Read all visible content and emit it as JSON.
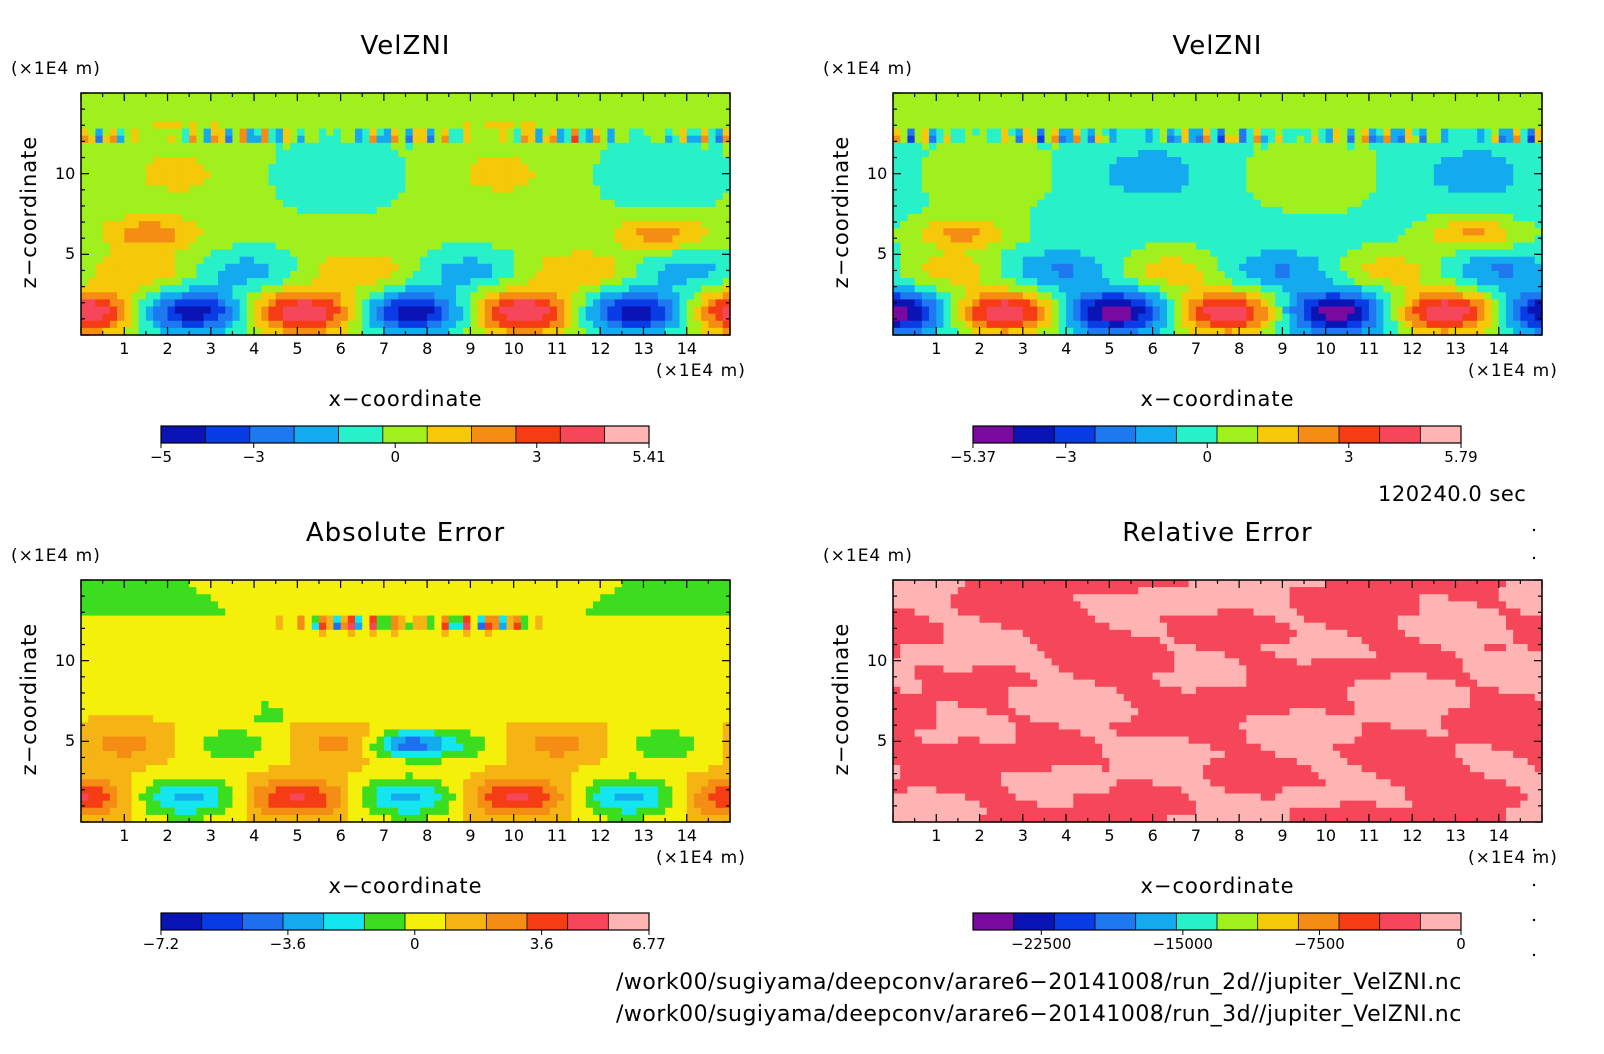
{
  "panels": [
    {
      "title": "VelZNI",
      "ylabel": "z−coordinate",
      "xlabel": "x−coordinate",
      "y_unit": "(×1E4 m)",
      "x_unit": "(×1E4 m)",
      "colorbar": {
        "colors": [
          "#0a14b4",
          "#0a3ce6",
          "#1e78f0",
          "#14aaf0",
          "#28f0c8",
          "#a0f01e",
          "#f5c80a",
          "#f58c14",
          "#f53c14",
          "#f5465a",
          "#ffb4b4"
        ],
        "tick_labels": [
          "−5",
          "−3",
          "0",
          "3",
          "5.41"
        ]
      }
    },
    {
      "title": "VelZNI",
      "ylabel": "z−coordinate",
      "xlabel": "x−coordinate",
      "y_unit": "(×1E4 m)",
      "x_unit": "(×1E4 m)",
      "colorbar": {
        "colors": [
          "#780aa0",
          "#0a14b4",
          "#0a3ce6",
          "#1e78f0",
          "#14aaf0",
          "#28f0c8",
          "#a0f01e",
          "#f5c80a",
          "#f58c14",
          "#f53c14",
          "#f5465a",
          "#ffb4b4"
        ],
        "tick_labels": [
          "−5.37",
          "−3",
          "0",
          "3",
          "5.79"
        ]
      }
    },
    {
      "title": "Absolute Error",
      "ylabel": "z−coordinate",
      "xlabel": "x−coordinate",
      "y_unit": "(×1E4 m)",
      "x_unit": "(×1E4 m)",
      "colorbar": {
        "colors": [
          "#0a14b4",
          "#0a3ce6",
          "#1e6ef0",
          "#14aaf0",
          "#14e6f0",
          "#3cdc1e",
          "#f5f00a",
          "#f5b414",
          "#f58c14",
          "#f53c14",
          "#f5465a",
          "#ffb4b4"
        ],
        "tick_labels": [
          "−7.2",
          "−3.6",
          "0",
          "3.6",
          "6.77"
        ]
      }
    },
    {
      "title": "Relative Error",
      "ylabel": "z−coordinate",
      "xlabel": "x−coordinate",
      "y_unit": "(×1E4 m)",
      "x_unit": "(×1E4 m)",
      "colorbar": {
        "colors": [
          "#780aa0",
          "#0a14b4",
          "#0a3ce6",
          "#1e78f0",
          "#14aaf0",
          "#28f0c8",
          "#a0f01e",
          "#f5c80a",
          "#f58c14",
          "#f53c14",
          "#f5465a",
          "#ffb4b4"
        ],
        "tick_labels": [
          "−22500",
          "−15000",
          "−7500",
          "0"
        ]
      }
    }
  ],
  "time_label": "120240.0 sec",
  "file_paths": [
    "/work00/sugiyama/deepconv/arare6−20141008/run_2d//jupiter_VelZNI.nc",
    "/work00/sugiyama/deepconv/arare6−20141008/run_3d//jupiter_VelZNI.nc"
  ],
  "chart_data": [
    {
      "type": "heatmap",
      "title": "VelZNI",
      "xlabel": "x−coordinate",
      "ylabel": "z−coordinate",
      "x_unit": "(×1E4 m)",
      "y_unit": "(×1E4 m)",
      "xlim": [
        0,
        15
      ],
      "ylim": [
        0,
        15
      ],
      "x_ticks": [
        1,
        2,
        3,
        4,
        5,
        6,
        7,
        8,
        9,
        10,
        11,
        12,
        13,
        14
      ],
      "y_ticks": [
        5,
        10
      ],
      "colorbar_range": [
        -5,
        5.41
      ],
      "colorbar_ticks": [
        -5,
        -3,
        0,
        3,
        5.41
      ]
    },
    {
      "type": "heatmap",
      "title": "VelZNI",
      "xlabel": "x−coordinate",
      "ylabel": "z−coordinate",
      "x_unit": "(×1E4 m)",
      "y_unit": "(×1E4 m)",
      "xlim": [
        0,
        15
      ],
      "ylim": [
        0,
        15
      ],
      "x_ticks": [
        1,
        2,
        3,
        4,
        5,
        6,
        7,
        8,
        9,
        10,
        11,
        12,
        13,
        14
      ],
      "y_ticks": [
        5,
        10
      ],
      "colorbar_range": [
        -5.37,
        5.79
      ],
      "colorbar_ticks": [
        -5.37,
        -3,
        0,
        3,
        5.79
      ]
    },
    {
      "type": "heatmap",
      "title": "Absolute Error",
      "xlabel": "x−coordinate",
      "ylabel": "z−coordinate",
      "x_unit": "(×1E4 m)",
      "y_unit": "(×1E4 m)",
      "xlim": [
        0,
        15
      ],
      "ylim": [
        0,
        15
      ],
      "x_ticks": [
        1,
        2,
        3,
        4,
        5,
        6,
        7,
        8,
        9,
        10,
        11,
        12,
        13,
        14
      ],
      "y_ticks": [
        5,
        10
      ],
      "colorbar_range": [
        -7.2,
        6.77
      ],
      "colorbar_ticks": [
        -7.2,
        -3.6,
        0,
        3.6,
        6.77
      ]
    },
    {
      "type": "heatmap",
      "title": "Relative Error",
      "xlabel": "x−coordinate",
      "ylabel": "z−coordinate",
      "x_unit": "(×1E4 m)",
      "y_unit": "(×1E4 m)",
      "xlim": [
        0,
        15
      ],
      "ylim": [
        0,
        15
      ],
      "x_ticks": [
        1,
        2,
        3,
        4,
        5,
        6,
        7,
        8,
        9,
        10,
        11,
        12,
        13,
        14
      ],
      "y_ticks": [
        5,
        10
      ],
      "colorbar_ticks": [
        -22500,
        -15000,
        -7500,
        0
      ]
    }
  ]
}
